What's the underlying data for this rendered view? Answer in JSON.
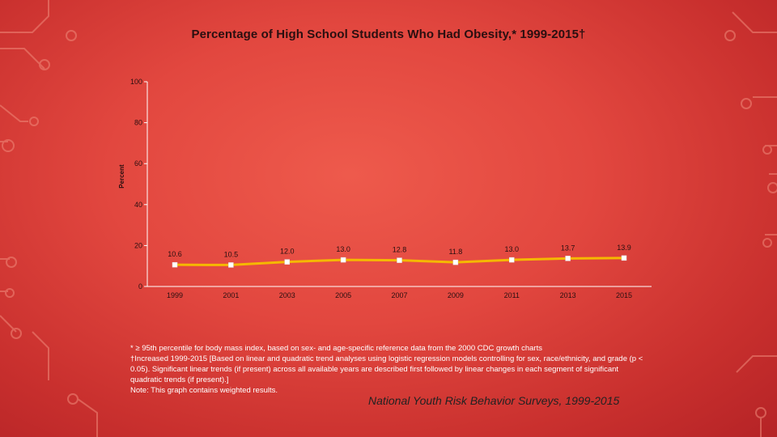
{
  "chart_data": {
    "type": "line",
    "title": "Percentage of High School Students Who Had Obesity,* 1999-2015†",
    "ylabel": "Percent",
    "xlabel": "",
    "categories": [
      "1999",
      "2001",
      "2003",
      "2005",
      "2007",
      "2009",
      "2011",
      "2013",
      "2015"
    ],
    "series": [
      {
        "values": [
          10.6,
          10.5,
          12.0,
          13.0,
          12.8,
          11.8,
          13.0,
          13.7,
          13.9
        ]
      }
    ],
    "value_labels": [
      "10.6",
      "10.5",
      "12.0",
      "13.0",
      "12.8",
      "11.8",
      "13.0",
      "13.7",
      "13.9"
    ],
    "ylim": [
      0,
      100
    ],
    "yticks": [
      0,
      20,
      40,
      60,
      80,
      100
    ],
    "grid": false,
    "colors": {
      "line": "#f5b800",
      "marker": "#ffffff",
      "axis": "#ffffff"
    }
  },
  "notes": [
    "* ≥ 95th percentile for body mass index, based on sex- and age-specific reference data from the 2000 CDC growth charts",
    "†Increased 1999-2015 [Based on linear and quadratic trend analyses using logistic regression models controlling for sex, race/ethnicity, and grade (p < 0.05). Significant linear trends (if present) across all available years are described first followed by linear changes in each segment of significant quadratic trends (if present).]",
    "Note: This graph contains weighted results."
  ],
  "source": "National Youth Risk Behavior Surveys, 1999-2015"
}
